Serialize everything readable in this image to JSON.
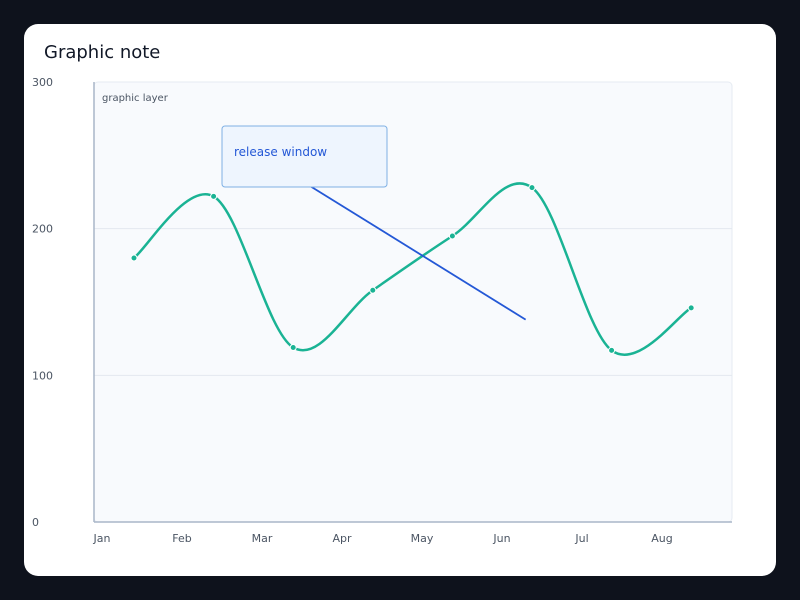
{
  "title": "Graphic note",
  "chart_data": {
    "type": "line",
    "title": "Graphic note",
    "categories": [
      "Jan",
      "Feb",
      "Mar",
      "Apr",
      "May",
      "Jun",
      "Jul",
      "Aug"
    ],
    "series": [
      {
        "values": [
          180,
          222,
          119,
          158,
          195,
          228,
          117,
          146
        ]
      }
    ],
    "ylim": [
      0,
      300
    ],
    "yticks": [
      0,
      100,
      200,
      300
    ],
    "grid": true,
    "smooth": true,
    "graphic_layer_label": "graphic layer",
    "annotation": {
      "text": "release window",
      "pointer_to": {
        "x": 4.92,
        "y": 138
      }
    },
    "colors": {
      "line": "#1ab394",
      "annotation": "#2458d6",
      "plot_bg": "#f8fafd",
      "grid": "#e3e8ef",
      "axis": "#a9b6c8"
    }
  }
}
